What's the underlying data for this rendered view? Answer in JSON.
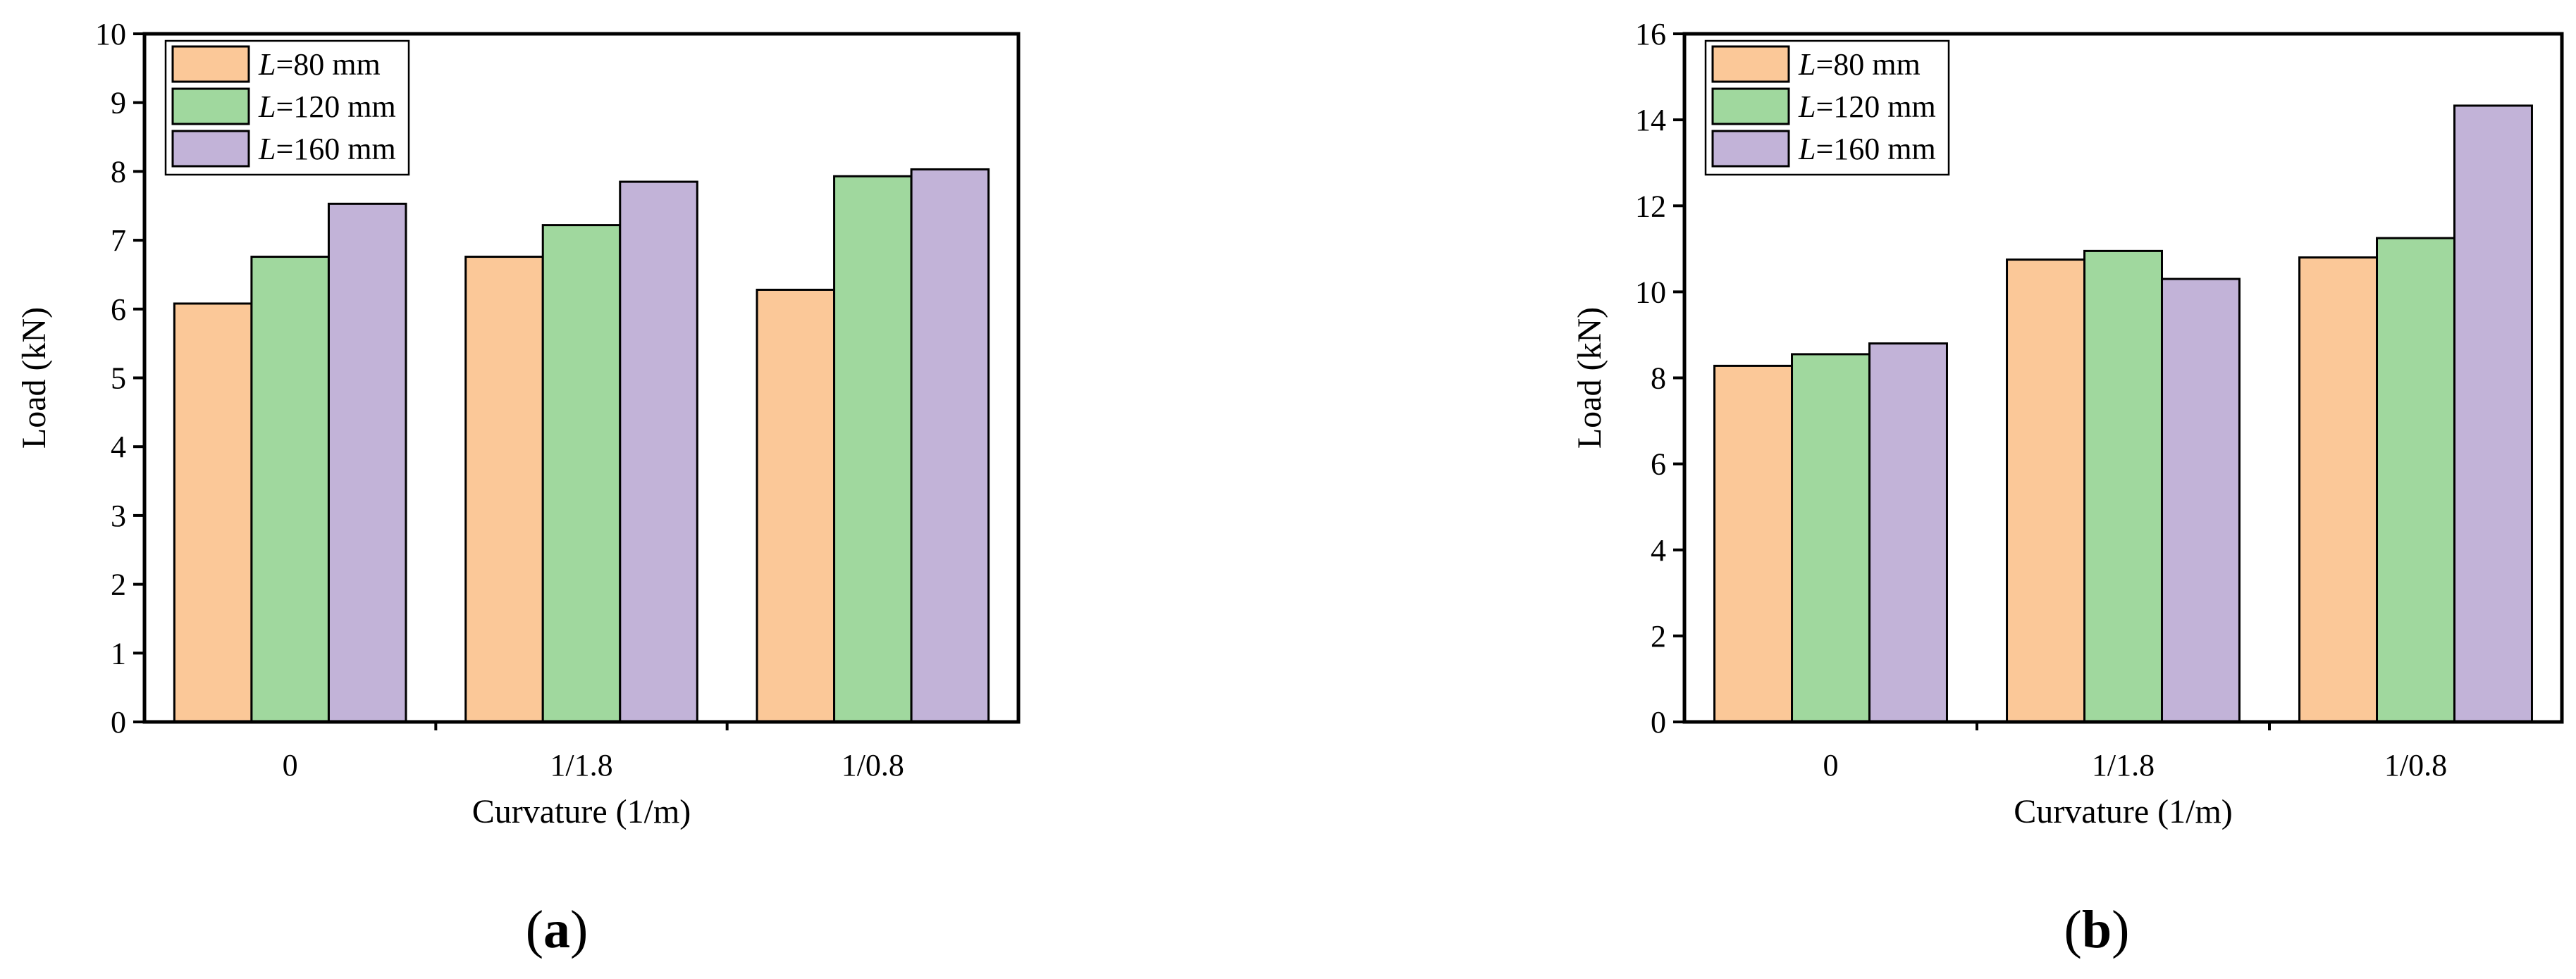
{
  "chart_data": [
    {
      "type": "bar",
      "panel_label": "a",
      "categories": [
        "0",
        "1/1.8",
        "1/0.8"
      ],
      "xlabel": "Curvature (1/m)",
      "ylabel": "Load (kN)",
      "ylim": [
        0,
        10
      ],
      "yticks": [
        0,
        1,
        2,
        3,
        4,
        5,
        6,
        7,
        8,
        9,
        10
      ],
      "legend_position": "top-left",
      "grid": false,
      "series": [
        {
          "name_var": "L",
          "name_rest": "=80 mm",
          "color": "#FBC898",
          "values": [
            6.08,
            6.76,
            6.28
          ]
        },
        {
          "name_var": "L",
          "name_rest": "=120 mm",
          "color": "#A0D89E",
          "values": [
            6.76,
            7.22,
            7.93
          ]
        },
        {
          "name_var": "L",
          "name_rest": "=160 mm",
          "color": "#C2B3D8",
          "values": [
            7.53,
            7.85,
            8.03
          ]
        }
      ]
    },
    {
      "type": "bar",
      "panel_label": "b",
      "categories": [
        "0",
        "1/1.8",
        "1/0.8"
      ],
      "xlabel": "Curvature (1/m)",
      "ylabel": "Load (kN)",
      "ylim": [
        0,
        16
      ],
      "yticks": [
        0,
        2,
        4,
        6,
        8,
        10,
        12,
        14,
        16
      ],
      "legend_position": "top-left",
      "grid": false,
      "series": [
        {
          "name_var": "L",
          "name_rest": "=80 mm",
          "color": "#FBC898",
          "values": [
            8.28,
            10.75,
            10.8
          ]
        },
        {
          "name_var": "L",
          "name_rest": "=120 mm",
          "color": "#A0D89E",
          "values": [
            8.55,
            10.95,
            11.25
          ]
        },
        {
          "name_var": "L",
          "name_rest": "=160 mm",
          "color": "#C2B3D8",
          "values": [
            8.8,
            10.3,
            14.33
          ]
        }
      ]
    }
  ]
}
